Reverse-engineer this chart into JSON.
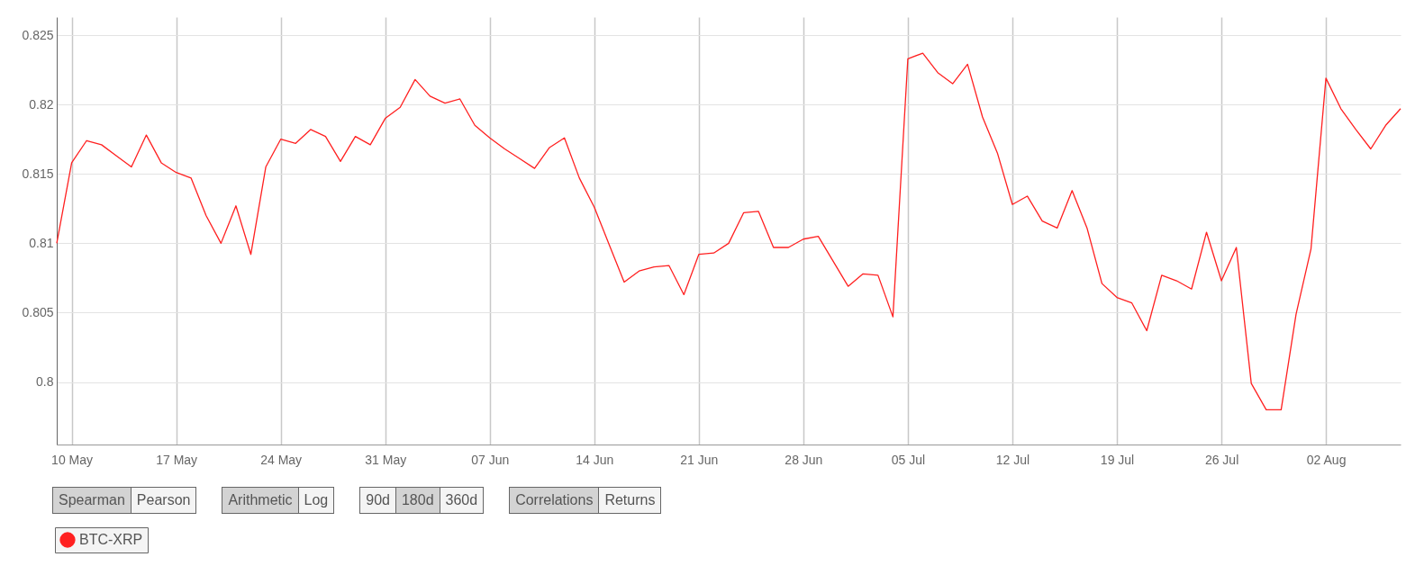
{
  "chart_data": {
    "type": "line",
    "x": [
      "--05-09",
      "--05-10",
      "--05-11",
      "--05-12",
      "--05-13",
      "--05-14",
      "--05-15",
      "--05-16",
      "--05-17",
      "--05-18",
      "--05-19",
      "--05-20",
      "--05-21",
      "--05-22",
      "--05-23",
      "--05-24",
      "--05-25",
      "--05-26",
      "--05-27",
      "--05-28",
      "--05-29",
      "--05-30",
      "--05-31",
      "--06-01",
      "--06-02",
      "--06-03",
      "--06-04",
      "--06-05",
      "--06-06",
      "--06-07",
      "--06-08",
      "--06-09",
      "--06-10",
      "--06-11",
      "--06-12",
      "--06-13",
      "--06-14",
      "--06-15",
      "--06-16",
      "--06-17",
      "--06-18",
      "--06-19",
      "--06-20",
      "--06-21",
      "--06-22",
      "--06-23",
      "--06-24",
      "--06-25",
      "--06-26",
      "--06-27",
      "--06-28",
      "--06-29",
      "--06-30",
      "--07-01",
      "--07-02",
      "--07-03",
      "--07-04",
      "--07-05",
      "--07-06",
      "--07-07",
      "--07-08",
      "--07-09",
      "--07-10",
      "--07-11",
      "--07-12",
      "--07-13",
      "--07-14",
      "--07-15",
      "--07-16",
      "--07-17",
      "--07-18",
      "--07-19",
      "--07-20",
      "--07-21",
      "--07-22",
      "--07-23",
      "--07-24",
      "--07-25",
      "--07-26",
      "--07-27",
      "--07-28",
      "--07-29",
      "--07-30",
      "--07-31",
      "--08-01",
      "--08-02",
      "--08-03",
      "--08-04",
      "--08-05",
      "--08-06",
      "--08-07"
    ],
    "series": [
      {
        "name": "BTC-XRP",
        "color": "#ff2020",
        "values": [
          0.81,
          0.8158,
          0.8174,
          0.8171,
          0.8163,
          0.8155,
          0.8178,
          0.8158,
          0.8151,
          0.8147,
          0.812,
          0.81,
          0.8127,
          0.8092,
          0.8155,
          0.8175,
          0.8172,
          0.8182,
          0.8177,
          0.8159,
          0.8177,
          0.8171,
          0.819,
          0.8198,
          0.8218,
          0.8206,
          0.8201,
          0.8204,
          0.8185,
          0.8176,
          0.8168,
          0.8161,
          0.8154,
          0.8169,
          0.8176,
          0.8147,
          0.8126,
          0.8099,
          0.8072,
          0.808,
          0.8083,
          0.8084,
          0.8063,
          0.8092,
          0.8093,
          0.81,
          0.8122,
          0.8123,
          0.8097,
          0.8097,
          0.8103,
          0.8105,
          0.8087,
          0.8069,
          0.8078,
          0.8077,
          0.8047,
          0.8233,
          0.8237,
          0.8223,
          0.8215,
          0.8229,
          0.8191,
          0.8165,
          0.8128,
          0.8134,
          0.8116,
          0.8111,
          0.8138,
          0.8111,
          0.8071,
          0.8061,
          0.8057,
          0.8037,
          0.8077,
          0.8073,
          0.8067,
          0.8108,
          0.8073,
          0.8097,
          0.7999,
          0.798,
          0.798,
          0.8049,
          0.8096,
          0.8219,
          0.8197,
          0.8182,
          0.8168,
          0.8185,
          0.8197
        ]
      }
    ],
    "xlim": [
      "--05-09",
      "--08-07"
    ],
    "xticks": [
      {
        "value": "--05-10",
        "label": "10 May"
      },
      {
        "value": "--05-17",
        "label": "17 May"
      },
      {
        "value": "--05-24",
        "label": "24 May"
      },
      {
        "value": "--05-31",
        "label": "31 May"
      },
      {
        "value": "--06-07",
        "label": "07 Jun"
      },
      {
        "value": "--06-14",
        "label": "14 Jun"
      },
      {
        "value": "--06-21",
        "label": "21 Jun"
      },
      {
        "value": "--06-28",
        "label": "28 Jun"
      },
      {
        "value": "--07-05",
        "label": "05 Jul"
      },
      {
        "value": "--07-12",
        "label": "12 Jul"
      },
      {
        "value": "--07-19",
        "label": "19 Jul"
      },
      {
        "value": "--07-26",
        "label": "26 Jul"
      },
      {
        "value": "--08-02",
        "label": "02 Aug"
      }
    ],
    "ylim": [
      0.7955,
      0.8263
    ],
    "yticks": [
      0.8,
      0.805,
      0.81,
      0.815,
      0.82,
      0.825
    ],
    "grid": true,
    "legend": "bottom left",
    "marker": "none",
    "line_style": "solid",
    "annotations": [
      "Spearman",
      "Pearson",
      "Arithmetic",
      "Log",
      "90d",
      "180d",
      "360d",
      "Correlations",
      "Returns"
    ]
  }
}
